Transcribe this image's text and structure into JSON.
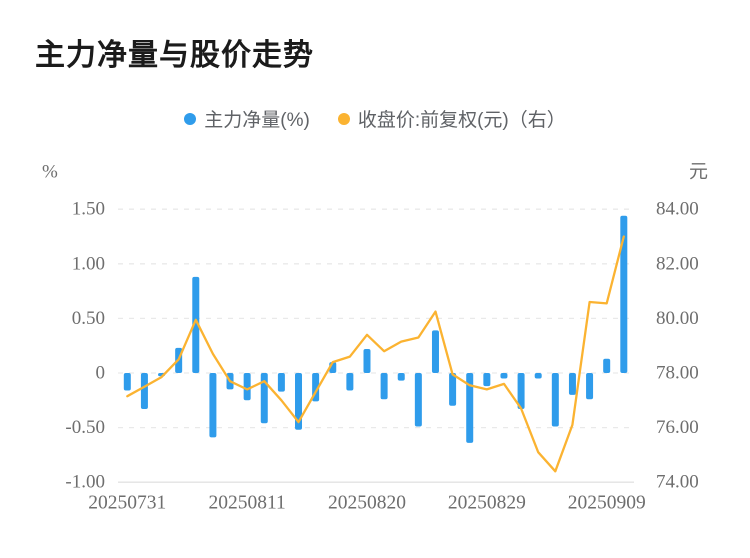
{
  "page": {
    "title": "主力净量与股价走势"
  },
  "legend": {
    "items": [
      {
        "label": "主力净量(%)",
        "color": "#2f9ceb"
      },
      {
        "label": "收盘价:前复权(元)（右）",
        "color": "#fbb331"
      }
    ]
  },
  "chart_data": {
    "type": "combo-bar-line",
    "title": "主力净量与股价走势",
    "n_points": 30,
    "x_labels": [
      "20250731",
      "20250811",
      "20250820",
      "20250829",
      "20250909"
    ],
    "x_label_indices": [
      0,
      7,
      14,
      21,
      28
    ],
    "bar_series": {
      "name": "主力净量(%)",
      "type": "bar",
      "color": "#2f9ceb",
      "axis": "left",
      "values": [
        -0.16,
        -0.33,
        -0.03,
        0.23,
        0.88,
        -0.59,
        -0.15,
        -0.25,
        -0.46,
        -0.17,
        -0.52,
        -0.26,
        0.1,
        -0.16,
        0.22,
        -0.24,
        -0.07,
        -0.49,
        0.39,
        -0.3,
        -0.64,
        -0.12,
        -0.05,
        -0.33,
        -0.05,
        -0.49,
        -0.2,
        -0.24,
        0.13,
        1.44
      ]
    },
    "line_series": {
      "name": "收盘价:前复权(元)",
      "type": "line",
      "color": "#fbb331",
      "axis": "right",
      "values": [
        77.15,
        77.5,
        77.85,
        78.5,
        79.95,
        78.7,
        77.7,
        77.4,
        77.7,
        77.0,
        76.2,
        77.3,
        78.4,
        78.6,
        79.4,
        78.8,
        79.15,
        79.3,
        80.25,
        77.95,
        77.55,
        77.4,
        77.6,
        76.7,
        75.1,
        74.4,
        76.1,
        80.6,
        80.55,
        83.0
      ]
    },
    "left_axis": {
      "unit": "%",
      "range": [
        -1.0,
        1.5
      ],
      "ticks": [
        1.5,
        1.0,
        0.5,
        0,
        -0.5,
        -1.0
      ],
      "tick_labels": [
        "1.50",
        "1.00",
        "0.50",
        "0",
        "-0.50",
        "-1.00"
      ]
    },
    "right_axis": {
      "unit": "元",
      "range": [
        74,
        84
      ],
      "ticks": [
        84,
        82,
        80,
        78,
        76,
        74
      ],
      "tick_labels": [
        "84.00",
        "82.00",
        "80.00",
        "78.00",
        "76.00",
        "74.00"
      ]
    },
    "grid": {
      "horizontal": true,
      "style": "dashed",
      "color": "#e9e9e9",
      "bottom_line": "solid"
    }
  }
}
